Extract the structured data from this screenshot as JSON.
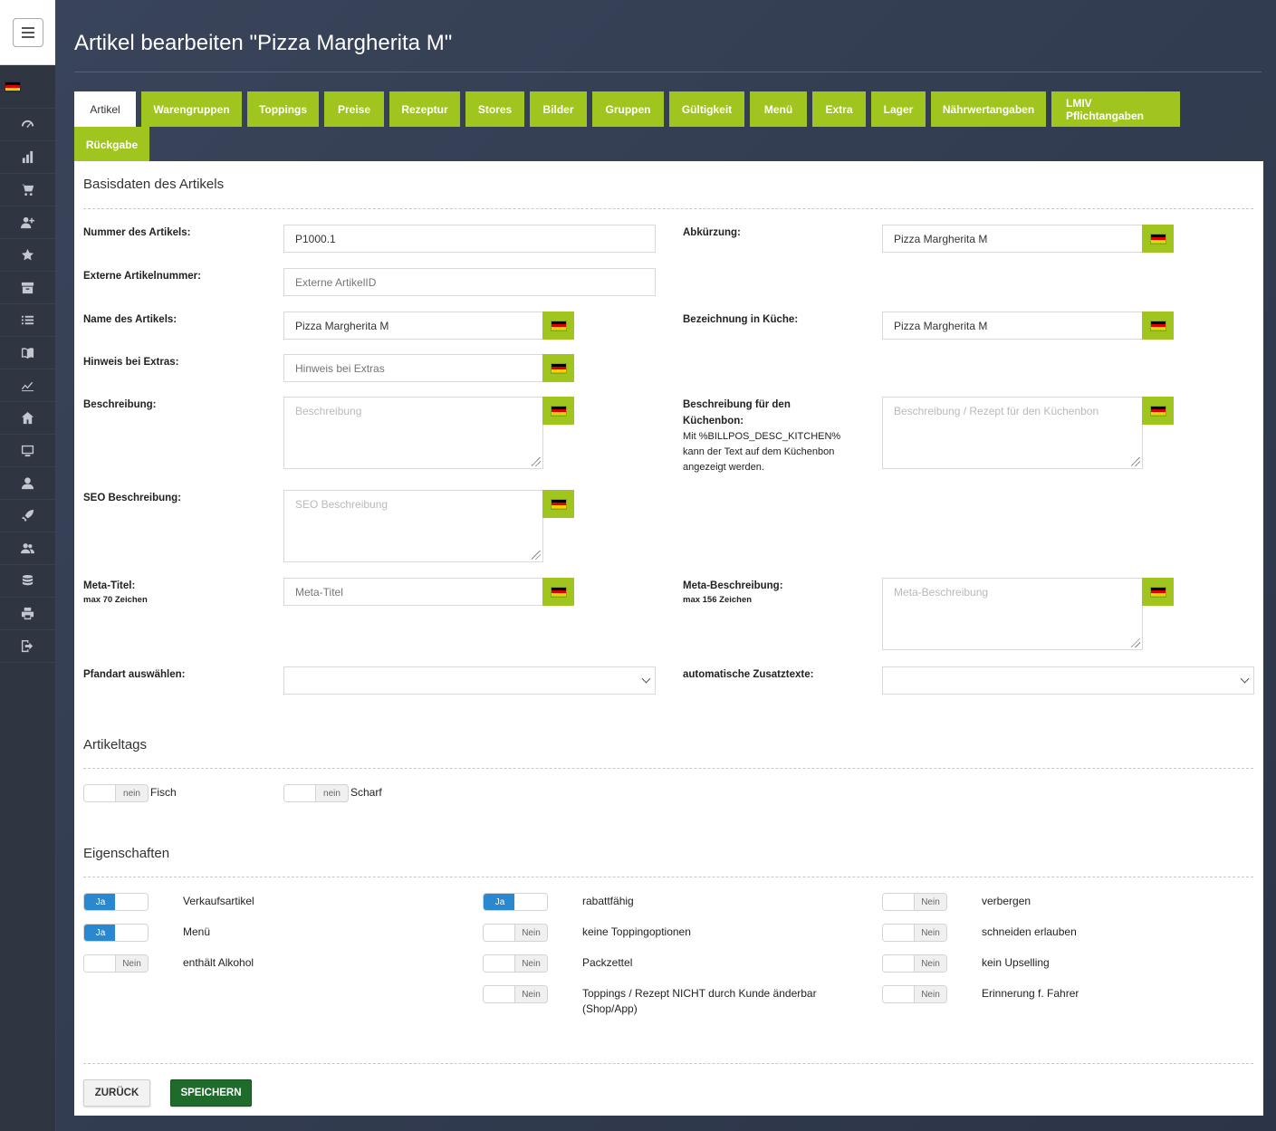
{
  "page": {
    "title": "Artikel bearbeiten \"Pizza Margherita M\""
  },
  "sidebar": {
    "items": [
      {
        "icon": "dashboard-gauge-icon"
      },
      {
        "icon": "bar-chart-icon"
      },
      {
        "icon": "shopping-cart-icon"
      },
      {
        "icon": "add-user-icon"
      },
      {
        "icon": "star-icon"
      },
      {
        "icon": "archive-icon"
      },
      {
        "icon": "list-icon"
      },
      {
        "icon": "book-icon"
      },
      {
        "icon": "trend-chart-icon"
      },
      {
        "icon": "home-icon"
      },
      {
        "icon": "monitor-icon"
      },
      {
        "icon": "user-icon"
      },
      {
        "icon": "rocket-icon"
      },
      {
        "icon": "users-icon"
      },
      {
        "icon": "database-icon"
      },
      {
        "icon": "printer-icon"
      },
      {
        "icon": "logout-icon"
      }
    ]
  },
  "tabs": [
    {
      "label": "Artikel",
      "active": true
    },
    {
      "label": "Warengruppen"
    },
    {
      "label": "Toppings"
    },
    {
      "label": "Preise"
    },
    {
      "label": "Rezeptur"
    },
    {
      "label": "Stores"
    },
    {
      "label": "Bilder"
    },
    {
      "label": "Gruppen"
    },
    {
      "label": "Gültigkeit"
    },
    {
      "label": "Menü"
    },
    {
      "label": "Extra"
    },
    {
      "label": "Lager"
    },
    {
      "label": "Nährwertangaben"
    },
    {
      "label": "LMIV Pflichtangaben"
    },
    {
      "label": "Rückgabe"
    }
  ],
  "basis": {
    "section_title": "Basisdaten des Artikels",
    "nummer": {
      "label": "Nummer des Artikels:",
      "value": "P1000.1"
    },
    "extern": {
      "label": "Externe Artikelnummer:",
      "placeholder": "Externe ArtikelID"
    },
    "name": {
      "label": "Name des Artikels:",
      "value": "Pizza Margherita M"
    },
    "hinweis": {
      "label": "Hinweis bei Extras:",
      "placeholder": "Hinweis bei Extras"
    },
    "beschreibung": {
      "label": "Beschreibung:",
      "placeholder": "Beschreibung"
    },
    "seo": {
      "label": "SEO Beschreibung:",
      "placeholder": "SEO Beschreibung"
    },
    "meta_titel": {
      "label": "Meta-Titel:",
      "sublabel": "max 70 Zeichen",
      "placeholder": "Meta-Titel"
    },
    "pfand": {
      "label": "Pfandart auswählen:",
      "value": ""
    },
    "abk": {
      "label": "Abkürzung:",
      "value": "Pizza Margherita M"
    },
    "kueche": {
      "label": "Bezeichnung in Küche:",
      "value": "Pizza Margherita M"
    },
    "kuechenbon": {
      "label": "Beschreibung für den Küchenbon:",
      "note": "Mit %BILLPOS_DESC_KITCHEN% kann der Text auf dem Küchenbon angezeigt werden.",
      "placeholder": "Beschreibung / Rezept für den Küchenbon"
    },
    "meta_beschr": {
      "label": "Meta-Beschreibung:",
      "sublabel": "max 156 Zeichen",
      "placeholder": "Meta-Beschreibung"
    },
    "zusatz": {
      "label": "automatische Zusatztexte:",
      "value": ""
    }
  },
  "tags": {
    "section_title": "Artikeltags",
    "items": [
      {
        "label": "Fisch",
        "state": "nein"
      },
      {
        "label": "Scharf",
        "state": "nein"
      }
    ]
  },
  "eigenschaften": {
    "section_title": "Eigenschaften",
    "col1": [
      {
        "label": "Verkaufsartikel",
        "state": "Ja"
      },
      {
        "label": "Menü",
        "state": "Ja"
      },
      {
        "label": "enthält Alkohol",
        "state": "Nein"
      }
    ],
    "col2": [
      {
        "label": "rabattfähig",
        "state": "Ja"
      },
      {
        "label": "keine Toppingoptionen",
        "state": "Nein"
      },
      {
        "label": "Packzettel",
        "state": "Nein"
      },
      {
        "label": "Toppings / Rezept NICHT durch Kunde änderbar (Shop/App)",
        "state": "Nein"
      }
    ],
    "col3": [
      {
        "label": "verbergen",
        "state": "Nein"
      },
      {
        "label": "schneiden erlauben",
        "state": "Nein"
      },
      {
        "label": "kein Upselling",
        "state": "Nein"
      },
      {
        "label": "Erinnerung f. Fahrer",
        "state": "Nein"
      }
    ]
  },
  "buttons": {
    "back": "ZURÜCK",
    "save": "SPEICHERN"
  },
  "colors": {
    "accent_green": "#a1c51f",
    "toggle_blue": "#2a88d0",
    "save_green": "#1f6b2b"
  }
}
